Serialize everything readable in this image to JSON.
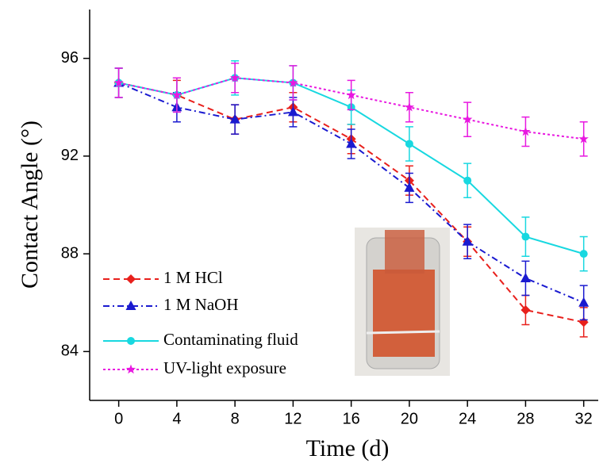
{
  "chart_data": {
    "type": "line",
    "x_label": "Time (d)",
    "y_label": "Contact Angle (°)",
    "x": [
      0,
      4,
      8,
      12,
      16,
      20,
      24,
      28,
      32
    ],
    "xlim": [
      -2,
      33
    ],
    "xticks": [
      0,
      4,
      8,
      12,
      16,
      20,
      24,
      28,
      32
    ],
    "ylim": [
      82,
      98
    ],
    "yticks": [
      84,
      88,
      92,
      96
    ],
    "legend": "lower left",
    "series": [
      {
        "name": "1 M HCl",
        "color": "#e8201c",
        "marker": "diamond",
        "dash": "dashed",
        "values": [
          95,
          94.5,
          93.5,
          94,
          92.7,
          91,
          88.5,
          85.7,
          85.2
        ],
        "errors": [
          0.6,
          0.6,
          0.6,
          0.6,
          0.6,
          0.6,
          0.6,
          0.6,
          0.6
        ]
      },
      {
        "name": "1 M NaOH",
        "color": "#1a1ad0",
        "marker": "triangle",
        "dash": "dashdot",
        "values": [
          95,
          94,
          93.5,
          93.8,
          92.5,
          90.7,
          88.5,
          87,
          86
        ],
        "errors": [
          0.6,
          0.6,
          0.6,
          0.6,
          0.6,
          0.6,
          0.7,
          0.7,
          0.7
        ]
      },
      {
        "name": "Contaminating fluid",
        "color": "#18d8e0",
        "marker": "circle",
        "dash": "solid",
        "values": [
          95,
          94.5,
          95.2,
          95,
          94,
          92.5,
          91,
          88.7,
          88
        ],
        "errors": [
          0.6,
          0.7,
          0.7,
          0.7,
          0.7,
          0.7,
          0.7,
          0.8,
          0.7
        ]
      },
      {
        "name": "UV-light exposure",
        "color": "#e818e0",
        "marker": "star",
        "dash": "dotted",
        "values": [
          95,
          94.5,
          95.2,
          95,
          94.5,
          94,
          93.5,
          93,
          92.7
        ],
        "errors": [
          0.6,
          0.7,
          0.6,
          0.7,
          0.6,
          0.6,
          0.7,
          0.6,
          0.7
        ]
      }
    ]
  }
}
